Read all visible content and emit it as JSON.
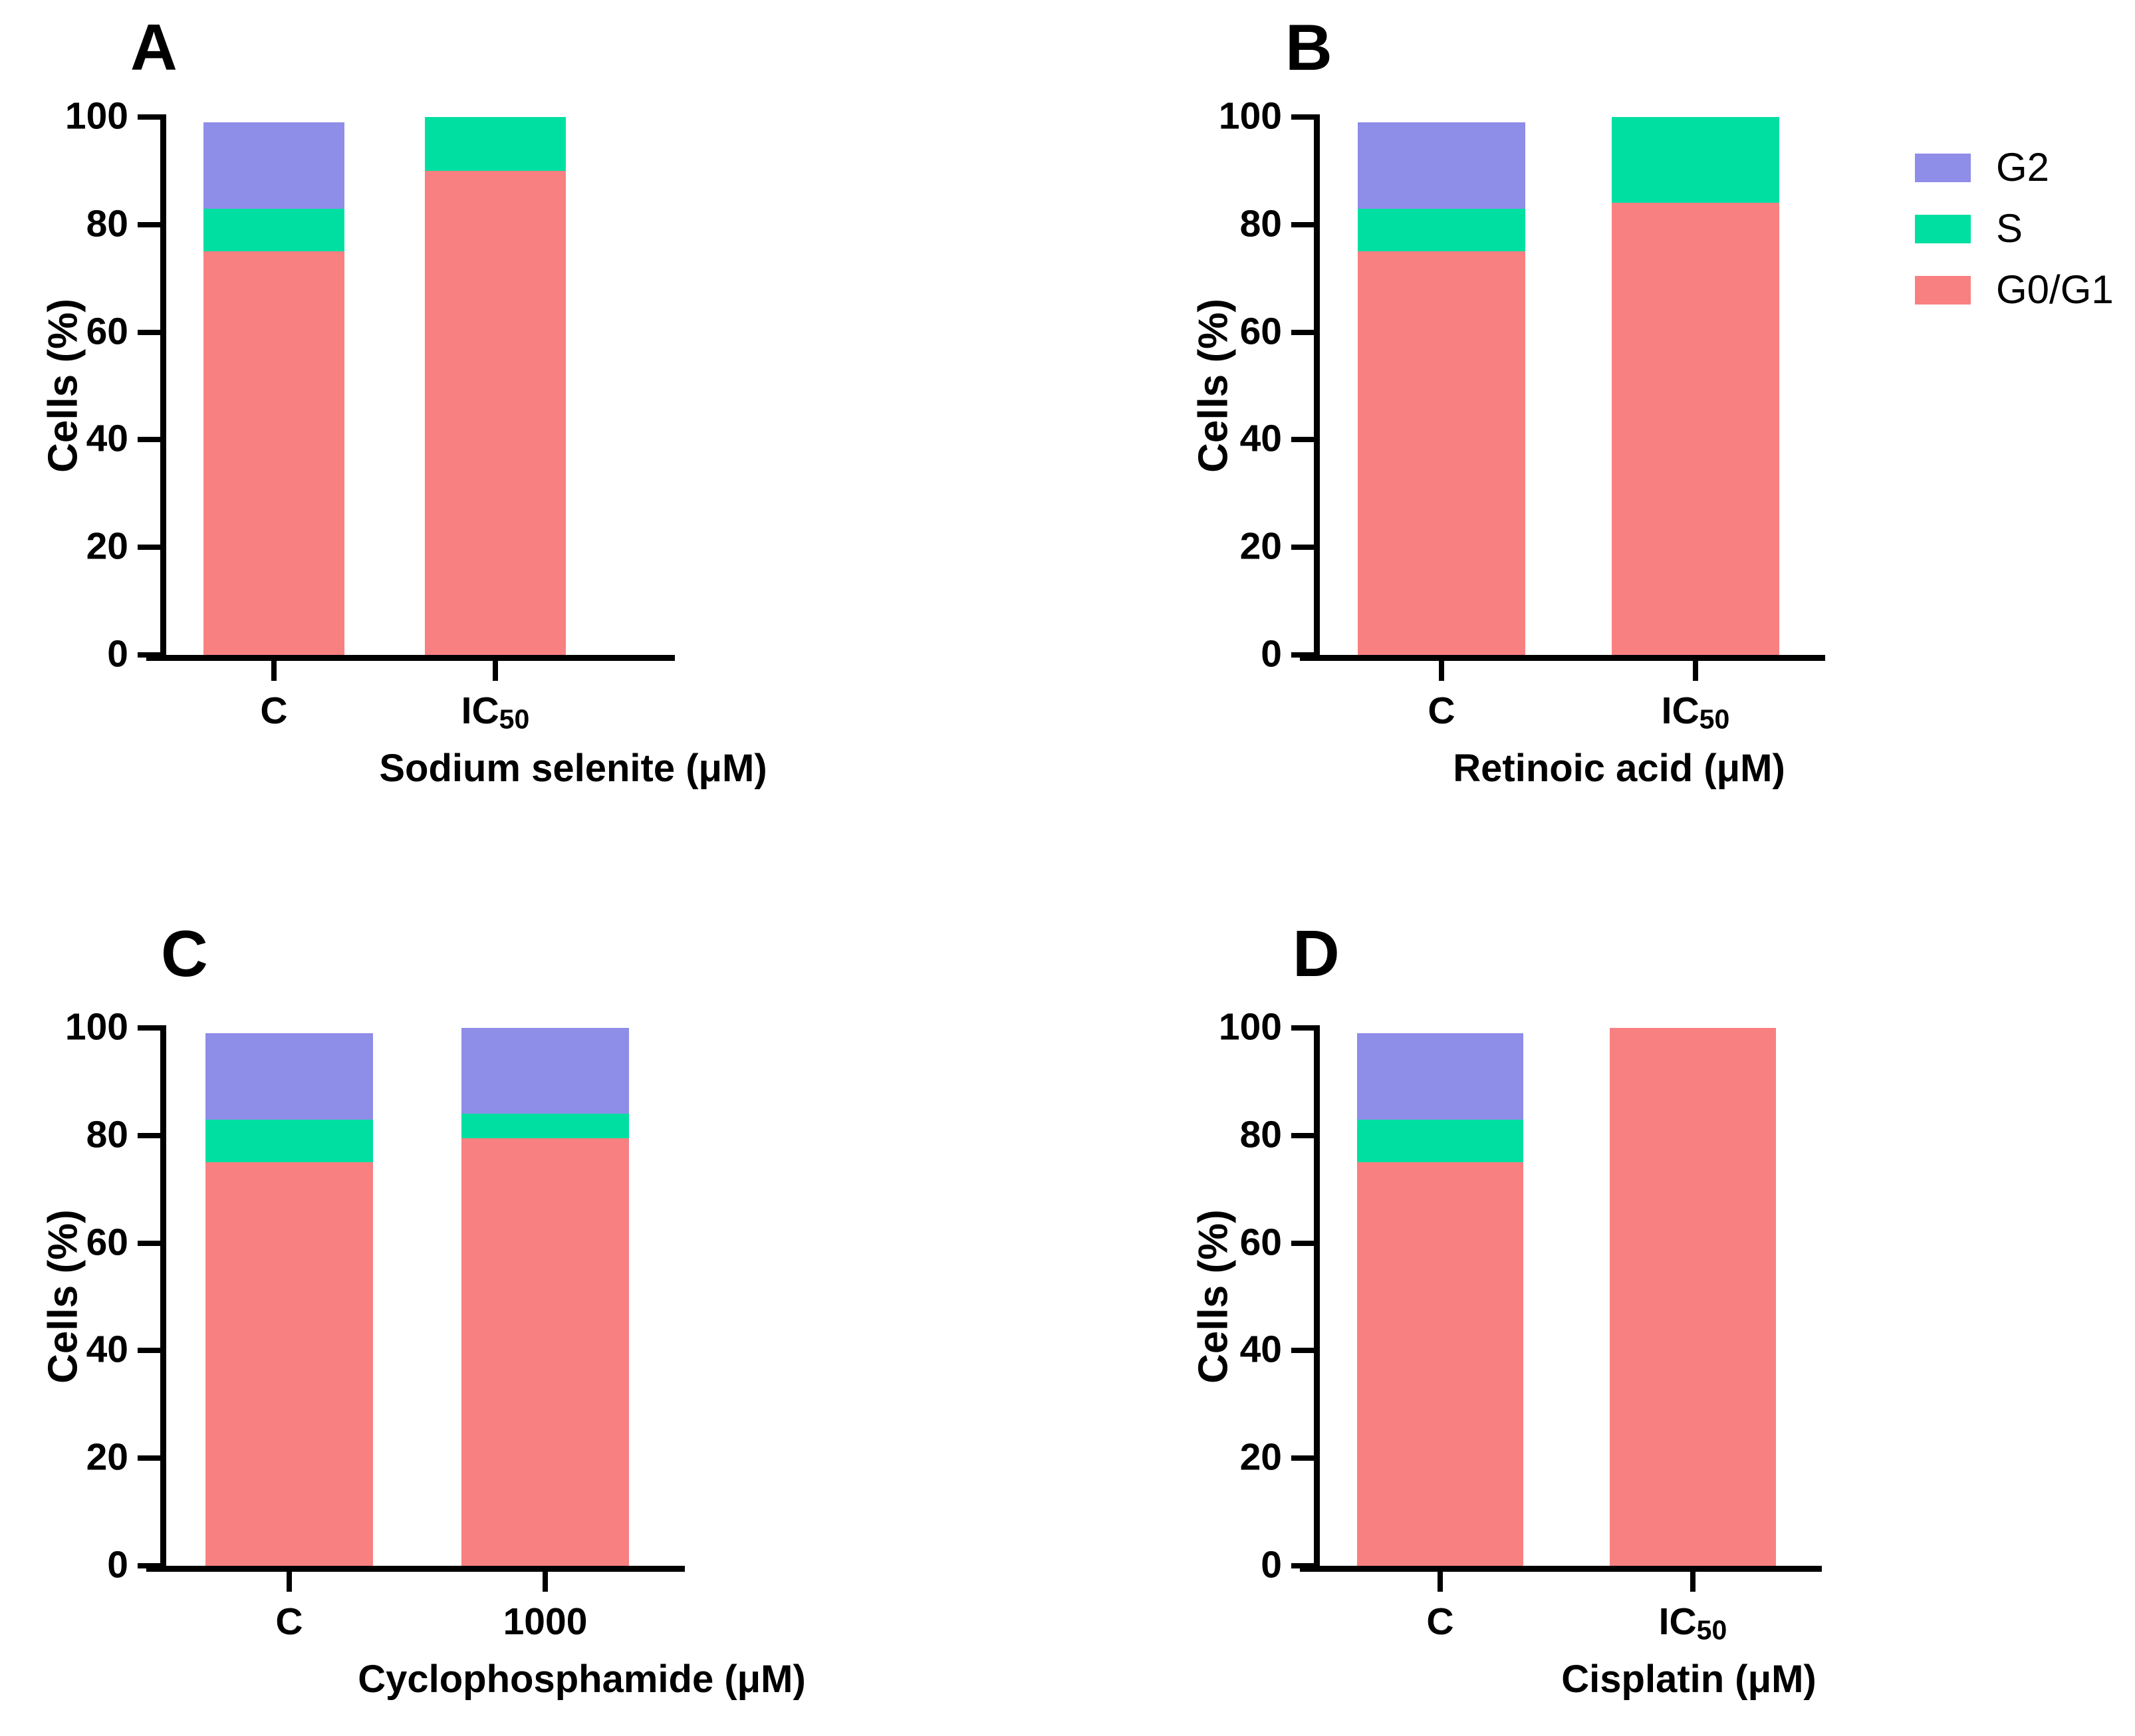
{
  "figure_title": "",
  "series_colors": {
    "G0/G1": "#F98080",
    "S": "#00DFA2",
    "G2": "#8E8DE8"
  },
  "axis_color": "#000000",
  "legend": {
    "items": [
      {
        "label": "G2",
        "color": "#8E8DE8"
      },
      {
        "label": "S",
        "color": "#00DFA2"
      },
      {
        "label": "G0/G1",
        "color": "#F98080"
      }
    ]
  },
  "chart_data": [
    {
      "type": "bar",
      "stacked": true,
      "panel_letter": "A",
      "xlabel": "Sodium selenite (μM)",
      "ylabel": "Cells (%)",
      "ylim": [
        0,
        100
      ],
      "yticks": [
        0,
        20,
        40,
        60,
        80,
        100
      ],
      "grid": false,
      "legend_position": "top-right-outside",
      "categories": [
        {
          "main": "C",
          "sub": ""
        },
        {
          "main": "IC",
          "sub": "50"
        }
      ],
      "series": [
        {
          "name": "G0/G1",
          "values": [
            75,
            90
          ]
        },
        {
          "name": "S",
          "values": [
            8,
            10
          ]
        },
        {
          "name": "G2",
          "values": [
            16,
            0
          ]
        }
      ]
    },
    {
      "type": "bar",
      "stacked": true,
      "panel_letter": "B",
      "xlabel": "Retinoic acid (μM)",
      "ylabel": "Cells (%)",
      "ylim": [
        0,
        100
      ],
      "yticks": [
        0,
        20,
        40,
        60,
        80,
        100
      ],
      "grid": false,
      "categories": [
        {
          "main": "C",
          "sub": ""
        },
        {
          "main": "IC",
          "sub": "50"
        }
      ],
      "series": [
        {
          "name": "G0/G1",
          "values": [
            75,
            84
          ]
        },
        {
          "name": "S",
          "values": [
            8,
            16
          ]
        },
        {
          "name": "G2",
          "values": [
            16,
            0
          ]
        }
      ]
    },
    {
      "type": "bar",
      "stacked": true,
      "panel_letter": "C",
      "xlabel": "Cyclophosphamide (μM)",
      "ylabel": "Cells (%)",
      "ylim": [
        0,
        100
      ],
      "yticks": [
        0,
        20,
        40,
        60,
        80,
        100
      ],
      "grid": false,
      "categories": [
        {
          "main": "C",
          "sub": ""
        },
        {
          "main": "1000",
          "sub": ""
        }
      ],
      "series": [
        {
          "name": "G0/G1",
          "values": [
            75,
            79.5
          ]
        },
        {
          "name": "S",
          "values": [
            8,
            4.5
          ]
        },
        {
          "name": "G2",
          "values": [
            16,
            16
          ]
        }
      ]
    },
    {
      "type": "bar",
      "stacked": true,
      "panel_letter": "D",
      "xlabel": "Cisplatin (μM)",
      "ylabel": "Cells (%)",
      "ylim": [
        0,
        100
      ],
      "yticks": [
        0,
        20,
        40,
        60,
        80,
        100
      ],
      "grid": false,
      "categories": [
        {
          "main": "C",
          "sub": ""
        },
        {
          "main": "IC",
          "sub": "50"
        }
      ],
      "series": [
        {
          "name": "G0/G1",
          "values": [
            75,
            100
          ]
        },
        {
          "name": "S",
          "values": [
            8,
            0
          ]
        },
        {
          "name": "G2",
          "values": [
            16,
            0
          ]
        }
      ]
    }
  ]
}
